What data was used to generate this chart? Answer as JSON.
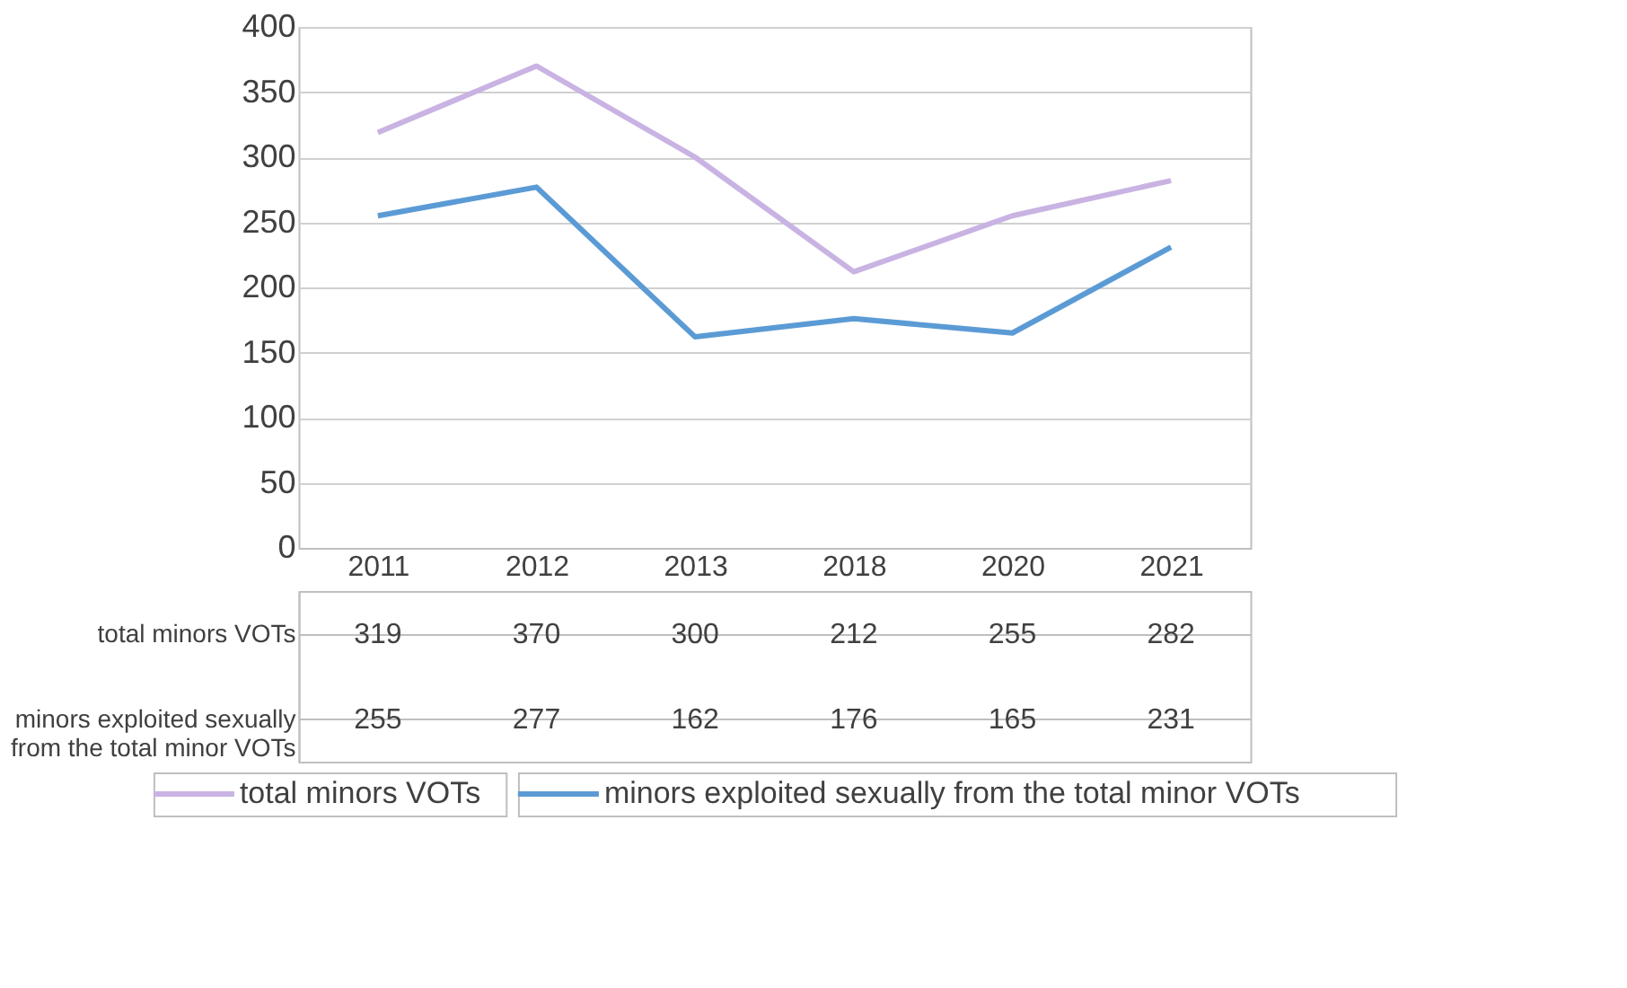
{
  "chart_data": {
    "type": "line",
    "categories": [
      "2011",
      "2012",
      "2013",
      "2018",
      "2020",
      "2021"
    ],
    "series": [
      {
        "name": "total minors VOTs",
        "color": "#c9b3e3",
        "values": [
          319,
          370,
          300,
          212,
          255,
          282
        ]
      },
      {
        "name": "minors exploited sexually from the total minor VOTs",
        "color": "#5b9bd5",
        "values": [
          255,
          277,
          162,
          176,
          165,
          231
        ]
      }
    ],
    "ylim": [
      0,
      400
    ],
    "yticks": [
      0,
      50,
      100,
      150,
      200,
      250,
      300,
      350,
      400
    ],
    "grid": "y",
    "legend": "bottom",
    "data_labels": true,
    "marker": "none",
    "line_style": "solid"
  }
}
